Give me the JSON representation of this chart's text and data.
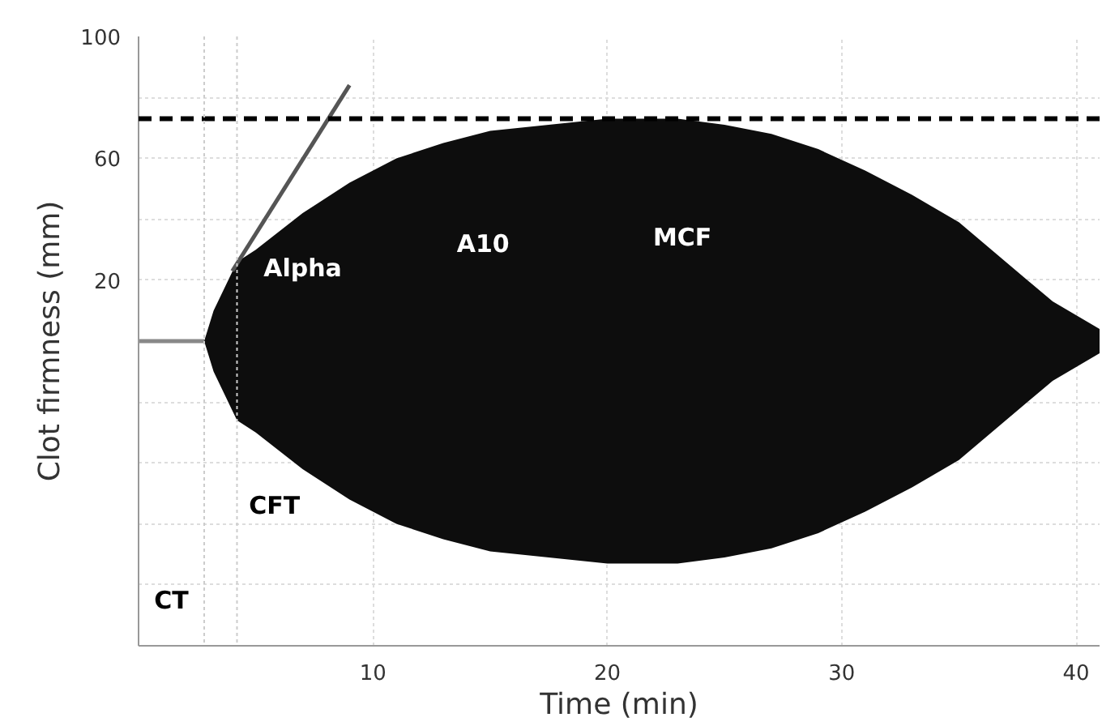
{
  "chart_data": {
    "type": "area",
    "xlabel": "Time (min)",
    "ylabel": "Clot firmness (mm)",
    "xlim": [
      0,
      41
    ],
    "ylim": [
      -100,
      100
    ],
    "xticks": [
      10,
      20,
      30,
      40
    ],
    "yticks": [
      {
        "value": -100,
        "label": null
      },
      {
        "value": -80,
        "label": null
      },
      {
        "value": -60,
        "label": null
      },
      {
        "value": -40,
        "label": null
      },
      {
        "value": -20,
        "label": null
      },
      20,
      {
        "value": 40,
        "label": null
      },
      60,
      {
        "value": 80,
        "label": null
      },
      100
    ],
    "grid": true,
    "series": [
      {
        "color": "#0d0d0d",
        "x": [
          2.8,
          3.2,
          4.2,
          5,
          7,
          9,
          11,
          13,
          15,
          17.5,
          20,
          23,
          25,
          27,
          29,
          31,
          33,
          35,
          37,
          39,
          41
        ],
        "values": [
          0,
          10,
          26,
          30,
          42,
          52,
          60,
          65,
          69,
          71,
          73,
          73,
          71,
          68,
          63,
          56,
          48,
          39,
          26,
          13,
          4
        ]
      },
      {
        "color": "#0d0d0d",
        "x": [
          2.8,
          3.2,
          4.2,
          5,
          7,
          9,
          11,
          13,
          15,
          17.5,
          20,
          23,
          25,
          27,
          29,
          31,
          33,
          35,
          37,
          39,
          41
        ],
        "values": [
          0,
          -10,
          -26,
          -30,
          -42,
          -52,
          -60,
          -65,
          -69,
          -71,
          -73,
          -73,
          -71,
          -68,
          -63,
          -56,
          -48,
          -39,
          -26,
          -13,
          -4
        ]
      },
      {
        "type": "line",
        "color": "#888888",
        "x": [
          0,
          2.8
        ],
        "values": [
          0,
          0
        ]
      },
      {
        "type": "line",
        "color": "#555555",
        "x": [
          4.0,
          9.0
        ],
        "values": [
          23,
          84
        ]
      }
    ],
    "ref_lines": [
      {
        "axis": "y",
        "value": 73,
        "color": "#000000",
        "line_style": "dashed"
      },
      {
        "axis": "x",
        "value": 2.8,
        "color": "#cccccc",
        "line_style": "dotted"
      },
      {
        "axis": "x",
        "value": 4.2,
        "color": "#cccccc",
        "line_style": "dotted"
      }
    ],
    "annotations": [
      "Alpha",
      "A10",
      "MCF",
      "CFT",
      "CT"
    ]
  }
}
